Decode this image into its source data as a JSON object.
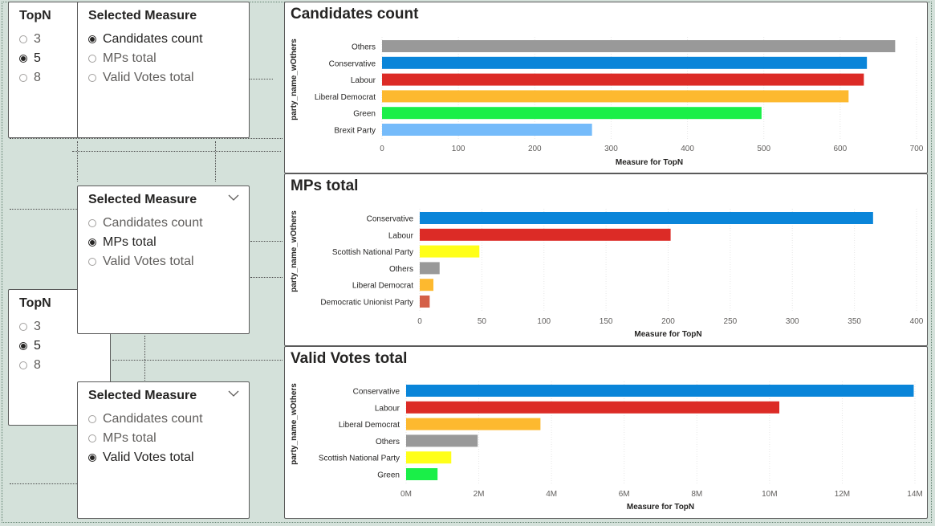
{
  "topn_slicers": [
    {
      "title": "TopN",
      "options": [
        {
          "label": "3",
          "selected": false
        },
        {
          "label": "5",
          "selected": true
        },
        {
          "label": "8",
          "selected": false
        }
      ]
    },
    {
      "title": "TopN",
      "options": [
        {
          "label": "3",
          "selected": false
        },
        {
          "label": "5",
          "selected": true
        },
        {
          "label": "8",
          "selected": false
        }
      ]
    }
  ],
  "measure_slicers": [
    {
      "title": "Selected Measure",
      "has_chevron": false,
      "options": [
        {
          "label": "Candidates count",
          "selected": true
        },
        {
          "label": "MPs total",
          "selected": false
        },
        {
          "label": "Valid Votes total",
          "selected": false
        }
      ]
    },
    {
      "title": "Selected Measure",
      "has_chevron": true,
      "options": [
        {
          "label": "Candidates count",
          "selected": false
        },
        {
          "label": "MPs total",
          "selected": true
        },
        {
          "label": "Valid Votes total",
          "selected": false
        }
      ]
    },
    {
      "title": "Selected Measure",
      "has_chevron": true,
      "options": [
        {
          "label": "Candidates count",
          "selected": false
        },
        {
          "label": "MPs total",
          "selected": false
        },
        {
          "label": "Valid Votes total",
          "selected": true
        }
      ]
    }
  ],
  "chart_data": [
    {
      "type": "bar",
      "orientation": "horizontal",
      "title": "Candidates count",
      "xlabel": "Measure for TopN",
      "ylabel": "party_name_wOthers",
      "categories": [
        "Others",
        "Conservative",
        "Labour",
        "Liberal Democrat",
        "Green",
        "Brexit Party"
      ],
      "values": [
        672,
        635,
        631,
        611,
        497,
        275
      ],
      "colors": [
        "#999999",
        "#0a85d9",
        "#dc2b26",
        "#fdb92f",
        "#1aef48",
        "#75bbfa"
      ],
      "xlim": [
        0,
        700
      ],
      "ticks": [
        0,
        100,
        200,
        300,
        400,
        500,
        600,
        700
      ],
      "tick_labels": [
        "0",
        "100",
        "200",
        "300",
        "400",
        "500",
        "600",
        "700"
      ],
      "grid": true
    },
    {
      "type": "bar",
      "orientation": "horizontal",
      "title": "MPs total",
      "xlabel": "Measure for TopN",
      "ylabel": "party_name_wOthers",
      "categories": [
        "Conservative",
        "Labour",
        "Scottish National Party",
        "Others",
        "Liberal Democrat",
        "Democratic Unionist Party"
      ],
      "values": [
        365,
        202,
        48,
        16,
        11,
        8
      ],
      "colors": [
        "#0a85d9",
        "#dc2b26",
        "#ffff19",
        "#999999",
        "#fdb92f",
        "#d46048"
      ],
      "xlim": [
        0,
        400
      ],
      "ticks": [
        0,
        50,
        100,
        150,
        200,
        250,
        300,
        350,
        400
      ],
      "tick_labels": [
        "0",
        "50",
        "100",
        "150",
        "200",
        "250",
        "300",
        "350",
        "400"
      ],
      "grid": true
    },
    {
      "type": "bar",
      "orientation": "horizontal",
      "title": "Valid Votes total",
      "xlabel": "Measure for TopN",
      "ylabel": "party_name_wOthers",
      "categories": [
        "Conservative",
        "Labour",
        "Liberal Democrat",
        "Others",
        "Scottish National Party",
        "Green"
      ],
      "values": [
        13966454,
        10269051,
        3696419,
        1970000,
        1242380,
        865715
      ],
      "colors": [
        "#0a85d9",
        "#dc2b26",
        "#fdb92f",
        "#999999",
        "#ffff19",
        "#1aef48"
      ],
      "xlim": [
        0,
        14000000
      ],
      "ticks": [
        0,
        2000000,
        4000000,
        6000000,
        8000000,
        10000000,
        12000000,
        14000000
      ],
      "tick_labels": [
        "0M",
        "2M",
        "4M",
        "6M",
        "8M",
        "10M",
        "12M",
        "14M"
      ],
      "grid": true
    }
  ]
}
